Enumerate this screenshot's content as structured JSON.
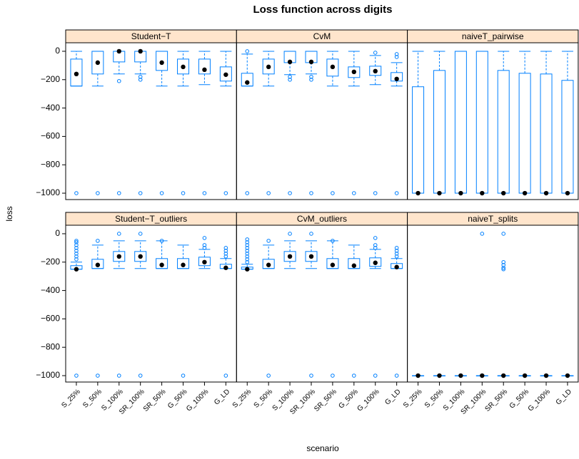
{
  "chart_data": {
    "type": "box",
    "title": "Loss function across digits",
    "xlabel": "scenario",
    "ylabel": "loss",
    "categories": [
      "S_25%",
      "S_50%",
      "S_100%",
      "SR_100%",
      "SR_50%",
      "G_50%",
      "G_100%",
      "G_LD"
    ],
    "ylim": [
      -1045,
      60
    ],
    "yticks": [
      {
        "value": -1000,
        "label": "−1000"
      },
      {
        "value": -800,
        "label": "−800"
      },
      {
        "value": -600,
        "label": "−600"
      },
      {
        "value": -400,
        "label": "−400"
      },
      {
        "value": -200,
        "label": "−200"
      },
      0
    ],
    "color": "#0080ff",
    "strip_color": "#ffe5cc",
    "median_color": "#000000",
    "panels": [
      {
        "name": "Student−T",
        "low": [
          -245,
          -245,
          -160,
          -160,
          -245,
          -245,
          -235,
          -245
        ],
        "q1": [
          -245,
          -160,
          -75,
          -75,
          -135,
          -160,
          -160,
          -210
        ],
        "median": [
          -160,
          -80,
          0,
          0,
          -80,
          -110,
          -130,
          -165
        ],
        "q3": [
          -55,
          0,
          0,
          0,
          0,
          -55,
          -55,
          -110
        ],
        "high": [
          0,
          0,
          0,
          0,
          0,
          0,
          0,
          0
        ],
        "outliers": [
          [
            -1000
          ],
          [
            -1000
          ],
          [
            -1000,
            -210
          ],
          [
            -1000,
            -180,
            -200
          ],
          [
            -1000
          ],
          [
            -1000
          ],
          [
            -1000
          ],
          [
            -1000
          ]
        ]
      },
      {
        "name": "CvM",
        "low": [
          -245,
          -245,
          -165,
          -160,
          -245,
          -245,
          -235,
          -245
        ],
        "q1": [
          -245,
          -160,
          -80,
          -80,
          -175,
          -185,
          -170,
          -210
        ],
        "median": [
          -220,
          -110,
          -75,
          -75,
          -110,
          -145,
          -140,
          -195
        ],
        "q3": [
          -155,
          -55,
          0,
          0,
          -55,
          -110,
          -105,
          -150
        ],
        "high": [
          -20,
          0,
          0,
          0,
          0,
          0,
          -30,
          -80
        ],
        "outliers": [
          [
            -1000,
            0
          ],
          [
            -1000
          ],
          [
            -1000,
            -180,
            -200
          ],
          [
            -1000,
            -180,
            -200
          ],
          [
            -1000
          ],
          [
            -1000
          ],
          [
            -1000,
            -10
          ],
          [
            -1000,
            -40,
            -20
          ]
        ]
      },
      {
        "name": "naiveT_pairwise",
        "low": [
          -1000,
          -1000,
          -1000,
          -1000,
          -1000,
          -1000,
          -1000,
          -1000
        ],
        "q1": [
          -1000,
          -1000,
          -1000,
          -1000,
          -1000,
          -1000,
          -1000,
          -1000
        ],
        "median": [
          -1000,
          -1000,
          -1000,
          -1000,
          -1000,
          -1000,
          -1000,
          -1000
        ],
        "q3": [
          -250,
          -135,
          0,
          0,
          -135,
          -155,
          -160,
          -205
        ],
        "high": [
          0,
          0,
          0,
          0,
          0,
          0,
          0,
          0
        ],
        "outliers": [
          [],
          [],
          [],
          [],
          [],
          [],
          [],
          []
        ]
      },
      {
        "name": "Student−T_outliers",
        "low": [
          -250,
          -245,
          -245,
          -245,
          -245,
          -245,
          -245,
          -245
        ],
        "q1": [
          -250,
          -245,
          -195,
          -195,
          -245,
          -245,
          -225,
          -245
        ],
        "median": [
          -250,
          -220,
          -160,
          -160,
          -220,
          -220,
          -200,
          -240
        ],
        "q3": [
          -225,
          -180,
          -125,
          -125,
          -175,
          -175,
          -165,
          -215
        ],
        "high": [
          -200,
          -80,
          -50,
          -50,
          -50,
          -80,
          -110,
          -175
        ],
        "outliers": [
          [
            -1000,
            -180,
            -160,
            -140,
            -120,
            -100,
            -80,
            -60,
            -50
          ],
          [
            -1000,
            -50
          ],
          [
            -1000,
            0
          ],
          [
            -1000,
            0
          ],
          [
            -50
          ],
          [
            -1000
          ],
          [
            -100,
            -80,
            -30
          ],
          [
            -1000,
            -160,
            -140,
            -120,
            -100
          ]
        ]
      },
      {
        "name": "CvM_outliers",
        "low": [
          -250,
          -245,
          -245,
          -245,
          -245,
          -245,
          -245,
          -245
        ],
        "q1": [
          -250,
          -245,
          -195,
          -195,
          -245,
          -245,
          -230,
          -245
        ],
        "median": [
          -250,
          -220,
          -160,
          -160,
          -220,
          -225,
          -205,
          -235
        ],
        "q3": [
          -235,
          -180,
          -125,
          -125,
          -175,
          -175,
          -170,
          -210
        ],
        "high": [
          -215,
          -80,
          -50,
          -50,
          -50,
          -80,
          -110,
          -175
        ],
        "outliers": [
          [
            -200,
            -180,
            -160,
            -140,
            -120,
            -100,
            -80,
            -60,
            -40
          ],
          [
            -1000,
            -50
          ],
          [
            0
          ],
          [
            -1000,
            0
          ],
          [
            -1000,
            -50
          ],
          [
            -1000
          ],
          [
            -1000,
            -100,
            -80,
            -30
          ],
          [
            -1000,
            -160,
            -140,
            -120,
            -100
          ]
        ]
      },
      {
        "name": "naiveT_splits",
        "low": [
          -1000,
          -1000,
          -1000,
          -1000,
          -1000,
          -1000,
          -1000,
          -1000
        ],
        "q1": [
          -1000,
          -1000,
          -1000,
          -1000,
          -1000,
          -1000,
          -1000,
          -1000
        ],
        "median": [
          -1000,
          -1000,
          -1000,
          -1000,
          -1000,
          -1000,
          -1000,
          -1000
        ],
        "q3": [
          -1000,
          -1000,
          -1000,
          -1000,
          -1000,
          -1000,
          -1000,
          -1000
        ],
        "high": [
          -1000,
          -1000,
          -1000,
          -1000,
          -1000,
          -1000,
          -1000,
          -1000
        ],
        "outliers": [
          [],
          [],
          [],
          [
            0
          ],
          [
            0,
            -200,
            -220,
            -240,
            -250
          ],
          [],
          [],
          []
        ]
      }
    ]
  }
}
